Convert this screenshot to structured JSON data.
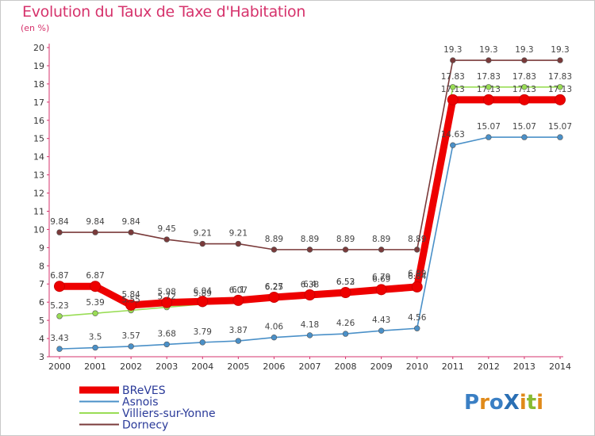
{
  "chart_data": {
    "type": "line",
    "title": "Evolution du Taux de Taxe d'Habitation",
    "unit_label": "(en %)",
    "xlabel": "",
    "ylabel": "",
    "x": [
      2000,
      2001,
      2002,
      2003,
      2004,
      2005,
      2006,
      2007,
      2008,
      2009,
      2010,
      2011,
      2012,
      2013,
      2014
    ],
    "ylim": [
      3,
      20
    ],
    "yticks": [
      3,
      4,
      5,
      6,
      7,
      8,
      9,
      10,
      11,
      12,
      13,
      14,
      15,
      16,
      17,
      18,
      19,
      20
    ],
    "series": [
      {
        "name": "Dornecy",
        "color": "#7a3a3a",
        "values": [
          9.84,
          9.84,
          9.84,
          9.45,
          9.21,
          9.21,
          8.89,
          8.89,
          8.89,
          8.89,
          8.89,
          19.3,
          19.3,
          19.3,
          19.3
        ],
        "labels": [
          "9.84",
          "9.84",
          "9.84",
          "9.45",
          "9.21",
          "9.21",
          "8.89",
          "8.89",
          "8.89",
          "8.89",
          "8.89",
          "19.3",
          "19.3",
          "19.3",
          "19.3"
        ]
      },
      {
        "name": "Villiers-sur-Yonne",
        "color": "#99dd55",
        "values": [
          5.23,
          5.39,
          5.55,
          5.72,
          5.89,
          6.07,
          6.25,
          6.38,
          6.52,
          6.79,
          6.99,
          17.83,
          17.83,
          17.83,
          17.83
        ],
        "labels": [
          "5.23",
          "5.39",
          "5.55",
          "5.72",
          "5.89",
          "6.07",
          "6.25",
          "6.38",
          "6.52",
          "6.79",
          "6.99",
          "17.83",
          "17.83",
          "17.83",
          "17.83"
        ]
      },
      {
        "name": "Asnois",
        "color": "#4a90c8",
        "values": [
          3.43,
          3.5,
          3.57,
          3.68,
          3.79,
          3.87,
          4.06,
          4.18,
          4.26,
          4.43,
          4.56,
          14.63,
          15.07,
          15.07,
          15.07
        ],
        "labels": [
          "3.43",
          "3.5",
          "3.57",
          "3.68",
          "3.79",
          "3.87",
          "4.06",
          "4.18",
          "4.26",
          "4.43",
          "4.56",
          "14.63",
          "15.07",
          "15.07",
          "15.07"
        ]
      },
      {
        "name": "BReVES",
        "color": "#ee0000",
        "values": [
          6.87,
          6.87,
          5.84,
          5.98,
          6.04,
          6.1,
          6.27,
          6.4,
          6.53,
          6.69,
          6.84,
          17.13,
          17.13,
          17.13,
          17.13
        ],
        "labels": [
          "6.87",
          "6.87",
          "5.84",
          "5.98",
          "6.04",
          "6.1",
          "6.27",
          "6.4",
          "6.53",
          "6.69",
          "6.84",
          "17.13",
          "17.13",
          "17.13",
          "17.13"
        ]
      }
    ],
    "legend": [
      "BReVES",
      "Asnois",
      "Villiers-sur-Yonne",
      "Dornecy"
    ],
    "legend_position": "bottom-left",
    "grid": false
  },
  "logo": {
    "text": "ProXiti"
  }
}
